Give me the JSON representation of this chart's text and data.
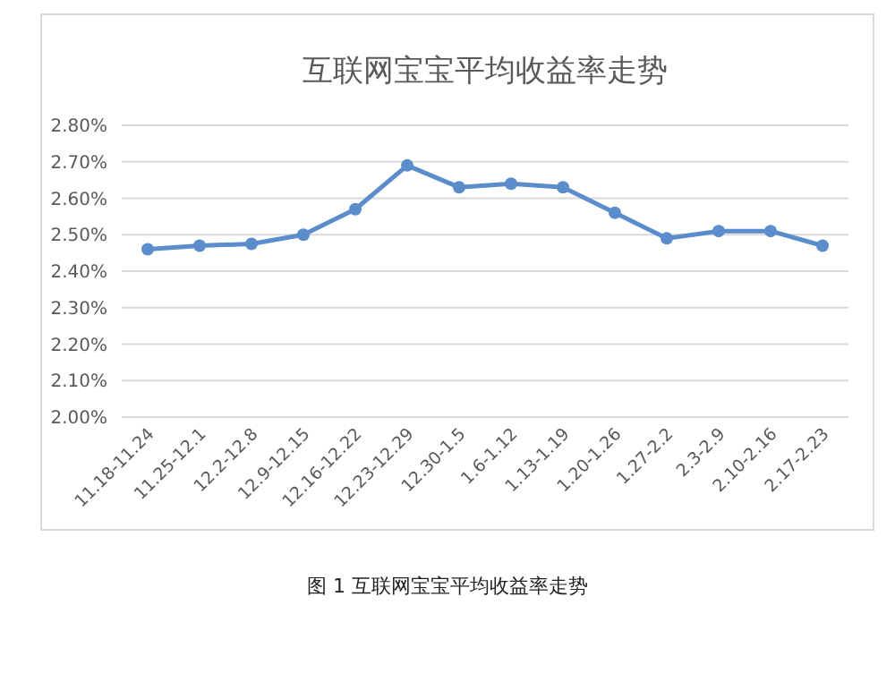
{
  "chart_data": {
    "type": "line",
    "title": "互联网宝宝平均收益率走势",
    "categories": [
      "11.18-11.24",
      "11.25-12.1",
      "12.2-12.8",
      "12.9-12.15",
      "12.16-12.22",
      "12.23-12.29",
      "12.30-1.5",
      "1.6-1.12",
      "1.13-1.19",
      "1.20-1.26",
      "1.27-2.2",
      "2.3-2.9",
      "2.10-2.16",
      "2.17-2.23"
    ],
    "series": [
      {
        "color": "#5b8ccc",
        "values": [
          2.46,
          2.47,
          2.475,
          2.5,
          2.57,
          2.69,
          2.63,
          2.64,
          2.63,
          2.56,
          2.49,
          2.51,
          2.51,
          2.47
        ]
      }
    ],
    "ylim": [
      2.0,
      2.8
    ],
    "yticks": [
      {
        "value": 2.0,
        "label": "2.00%"
      },
      {
        "value": 2.1,
        "label": "2.10%"
      },
      {
        "value": 2.2,
        "label": "2.20%"
      },
      {
        "value": 2.3,
        "label": "2.30%"
      },
      {
        "value": 2.4,
        "label": "2.40%"
      },
      {
        "value": 2.5,
        "label": "2.50%"
      },
      {
        "value": 2.6,
        "label": "2.60%"
      },
      {
        "value": 2.7,
        "label": "2.70%"
      },
      {
        "value": 2.8,
        "label": "2.80%"
      }
    ],
    "grid": "y",
    "marker": "circle",
    "line_style": "solid",
    "annotations": [
      "图 1  互联网宝宝平均收益率走势"
    ]
  }
}
